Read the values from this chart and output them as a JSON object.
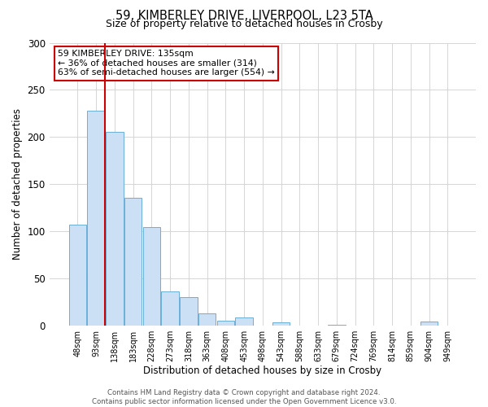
{
  "title": "59, KIMBERLEY DRIVE, LIVERPOOL, L23 5TA",
  "subtitle": "Size of property relative to detached houses in Crosby",
  "xlabel": "Distribution of detached houses by size in Crosby",
  "ylabel": "Number of detached properties",
  "bar_labels": [
    "48sqm",
    "93sqm",
    "138sqm",
    "183sqm",
    "228sqm",
    "273sqm",
    "318sqm",
    "363sqm",
    "408sqm",
    "453sqm",
    "498sqm",
    "543sqm",
    "588sqm",
    "633sqm",
    "679sqm",
    "724sqm",
    "769sqm",
    "814sqm",
    "859sqm",
    "904sqm",
    "949sqm"
  ],
  "bar_values": [
    107,
    228,
    205,
    135,
    104,
    36,
    30,
    13,
    5,
    8,
    0,
    3,
    0,
    0,
    1,
    0,
    0,
    0,
    0,
    4,
    0
  ],
  "bar_color": "#cce0f5",
  "bar_edgecolor": "#6baed6",
  "ylim": [
    0,
    300
  ],
  "yticks": [
    0,
    50,
    100,
    150,
    200,
    250,
    300
  ],
  "red_line_index": 2,
  "annotation_title": "59 KIMBERLEY DRIVE: 135sqm",
  "annotation_line1": "← 36% of detached houses are smaller (314)",
  "annotation_line2": "63% of semi-detached houses are larger (554) →",
  "red_line_color": "#cc0000",
  "annotation_box_color": "#ffffff",
  "annotation_box_edgecolor": "#cc0000",
  "footer1": "Contains HM Land Registry data © Crown copyright and database right 2024.",
  "footer2": "Contains public sector information licensed under the Open Government Licence v3.0.",
  "bg_color": "#ffffff",
  "grid_color": "#d0d0d0"
}
